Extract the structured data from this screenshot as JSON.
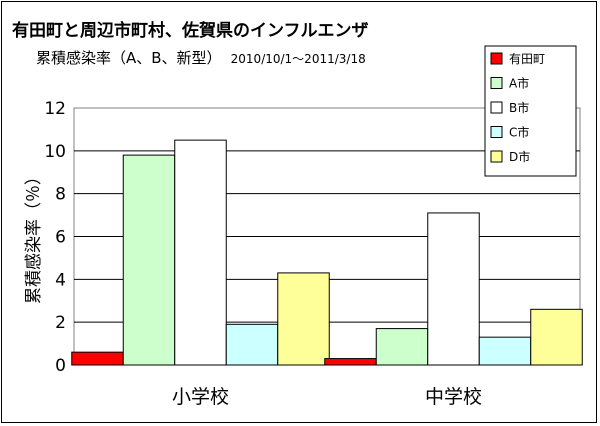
{
  "chart_data": {
    "type": "bar",
    "title": "有田町と周辺市町村、佐賀県のインフルエンザ",
    "subtitle": "累積感染率（A、B、新型）",
    "date_range": "2010/10/1～2011/3/18",
    "ylabel": "累積感染率（％）",
    "ylim": [
      0,
      12
    ],
    "yticks": [
      "0",
      "2",
      "4",
      "6",
      "8",
      "10",
      "12"
    ],
    "grid": true,
    "legend_position": "top-right",
    "categories": [
      "小学校",
      "中学校"
    ],
    "series": [
      {
        "name": "有田町",
        "color": "#ff0000",
        "values": [
          0.6,
          0.3
        ]
      },
      {
        "name": "A市",
        "color": "#ccffcc",
        "values": [
          9.8,
          1.7
        ]
      },
      {
        "name": "B市",
        "color": "#ffffff",
        "values": [
          10.5,
          7.1
        ]
      },
      {
        "name": "C市",
        "color": "#ccffff",
        "values": [
          1.9,
          1.3
        ]
      },
      {
        "name": "D市",
        "color": "#ffff99",
        "values": [
          4.3,
          2.6
        ]
      }
    ]
  }
}
